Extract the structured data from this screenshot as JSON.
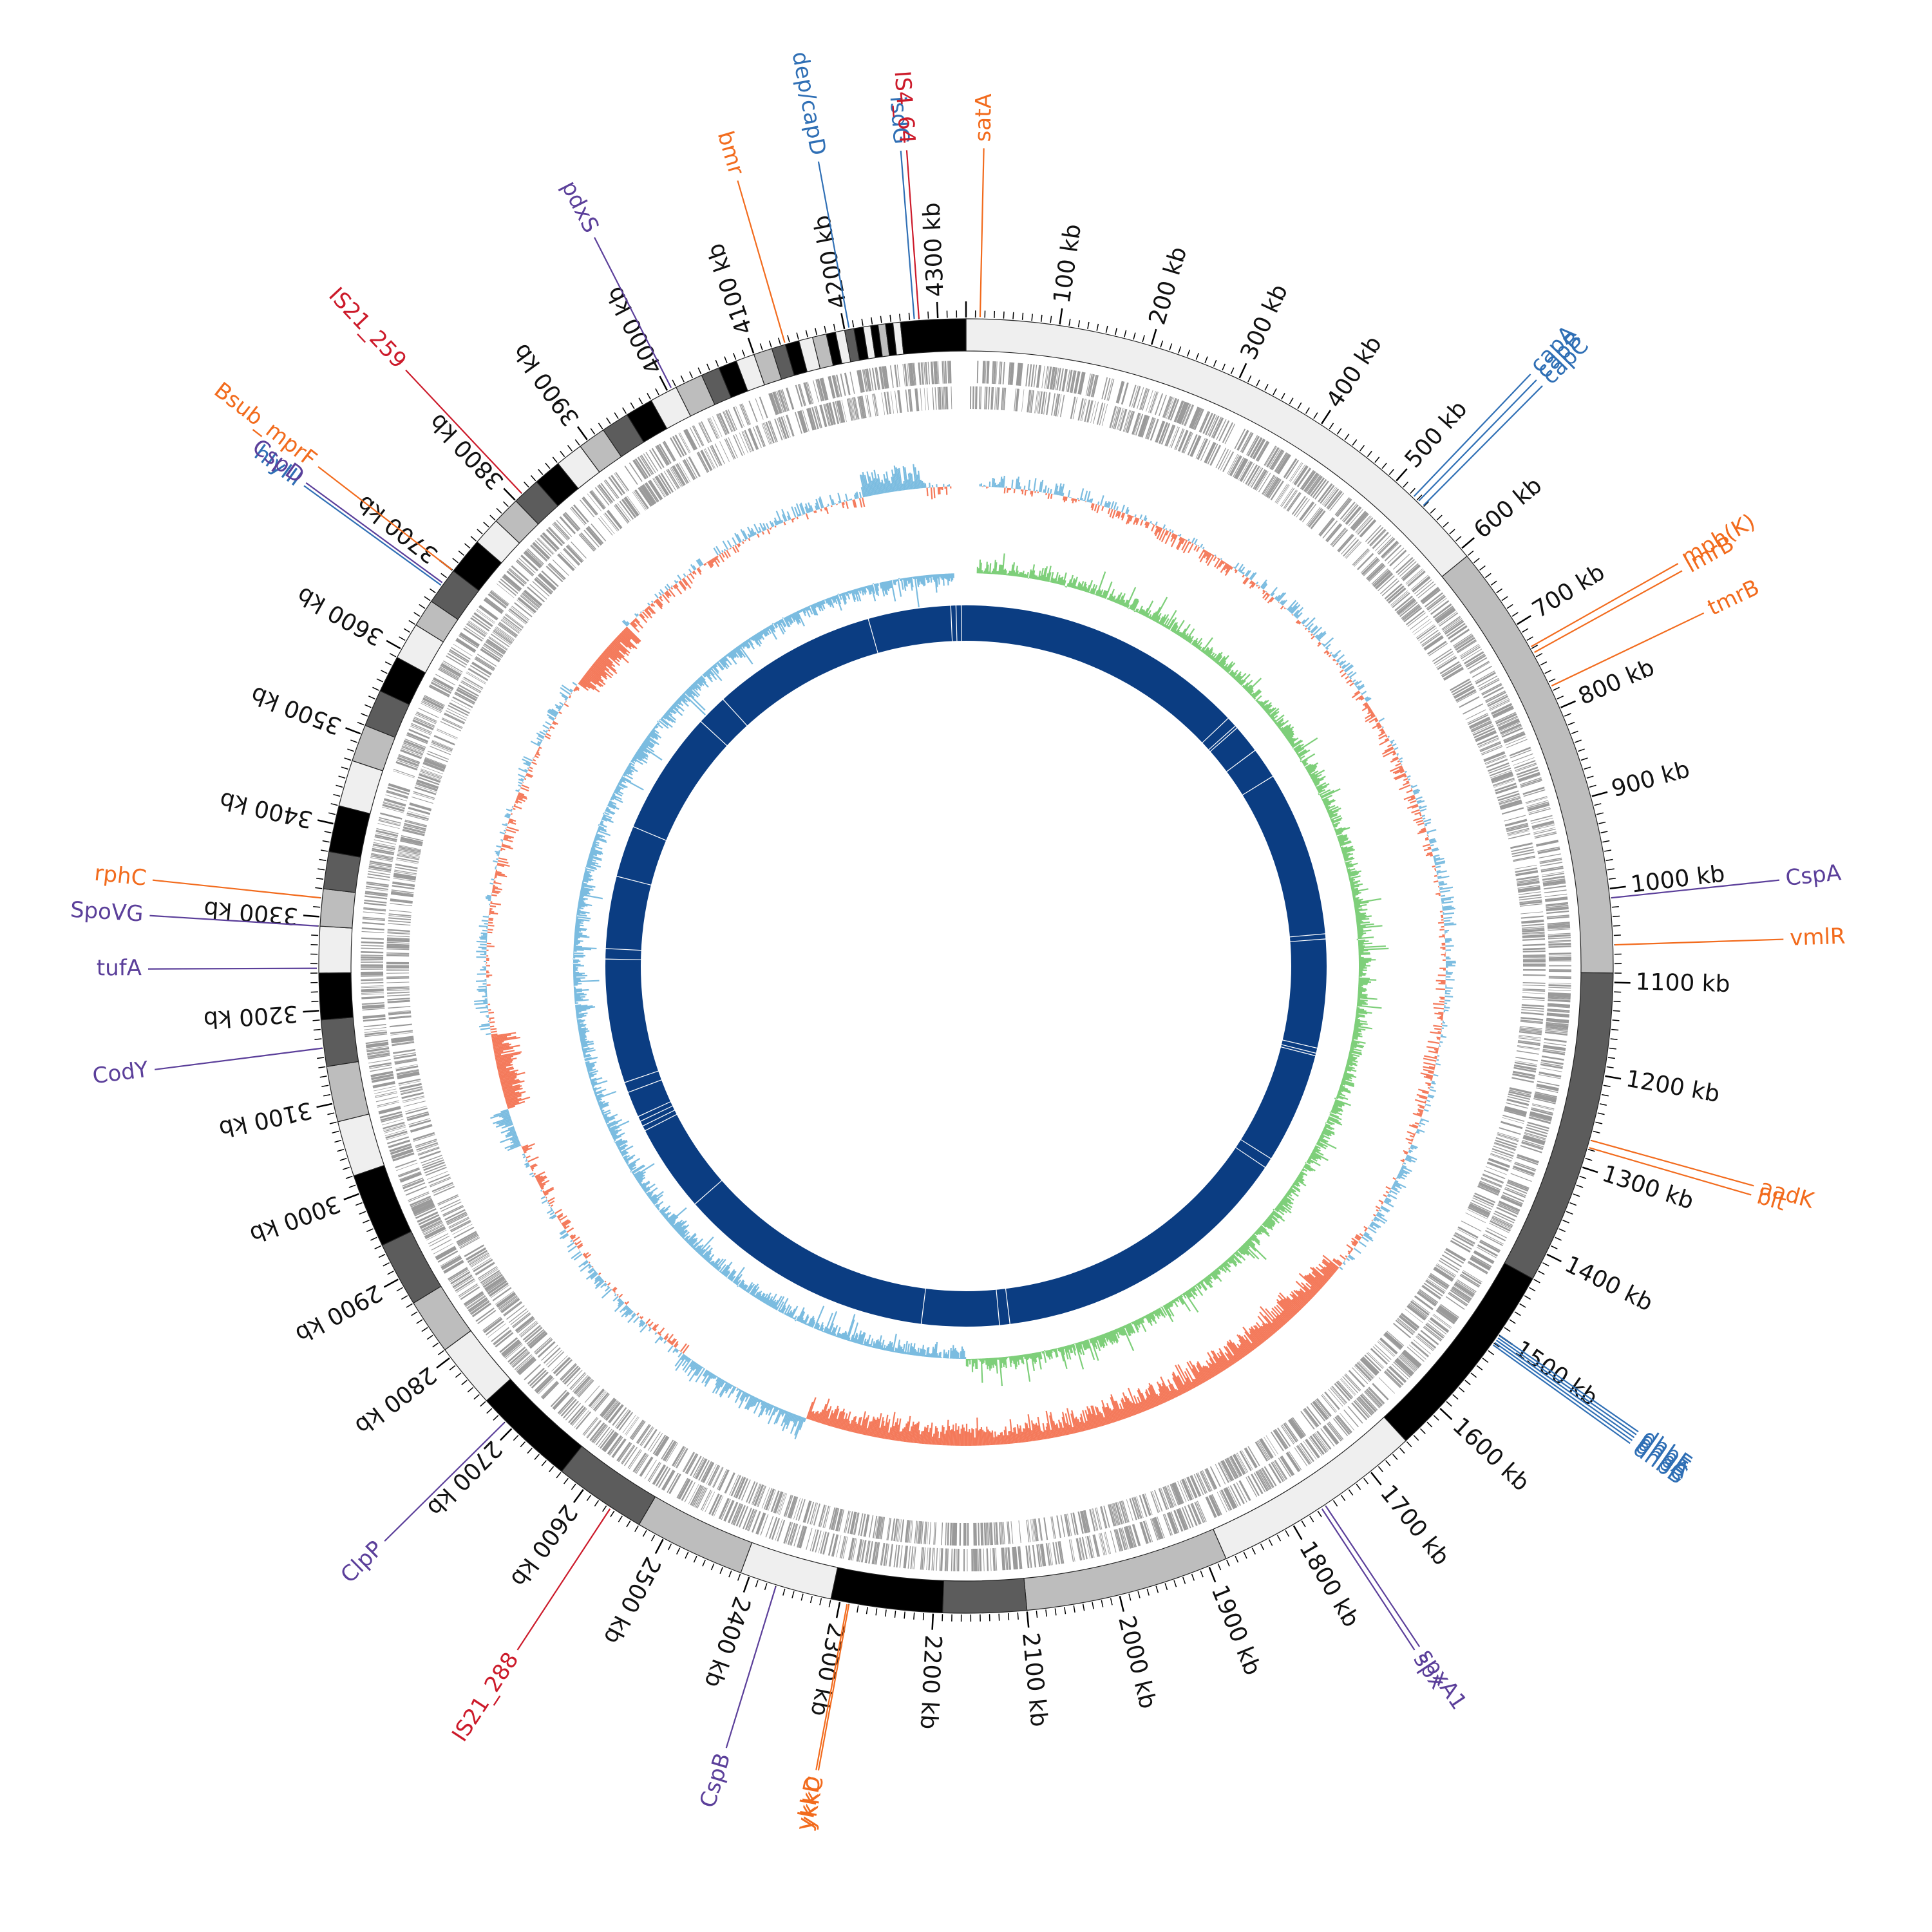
{
  "genome": {
    "length_kb": 4330,
    "start_angle_deg": 0
  },
  "colors": {
    "orange": "#f26b1d",
    "blue": "#2f6fb5",
    "purple": "#5b3f9a",
    "red": "#cc1a2a",
    "gc_pos": "#7bbce0",
    "gc_neg": "#f4795a",
    "skew": "#7ecf7a",
    "core": "#0b3d82",
    "cds": "#9a9a9a"
  },
  "ticks": {
    "labels": [
      "100 kb",
      "200 kb",
      "300 kb",
      "400 kb",
      "500 kb",
      "600 kb",
      "700 kb",
      "800 kb",
      "900 kb",
      "1000 kb",
      "1100 kb",
      "1200 kb",
      "1300 kb",
      "1400 kb",
      "1500 kb",
      "1600 kb",
      "1700 kb",
      "1800 kb",
      "1900 kb",
      "2000 kb",
      "2100 kb",
      "2200 kb",
      "2300 kb",
      "2400 kb",
      "2500 kb",
      "2600 kb",
      "2700 kb",
      "2800 kb",
      "2900 kb",
      "3000 kb",
      "3100 kb",
      "3200 kb",
      "3300 kb",
      "3400 kb",
      "3500 kb",
      "3600 kb",
      "3700 kb",
      "3800 kb",
      "3900 kb",
      "4000 kb",
      "4100 kb",
      "4200 kb",
      "4300 kb"
    ],
    "positions_kb": [
      100,
      200,
      300,
      400,
      500,
      600,
      700,
      800,
      900,
      1000,
      1100,
      1200,
      1300,
      1400,
      1500,
      1600,
      1700,
      1800,
      1900,
      2000,
      2100,
      2200,
      2300,
      2400,
      2500,
      2600,
      2700,
      2800,
      2900,
      3000,
      3100,
      3200,
      3300,
      3400,
      3500,
      3600,
      3700,
      3800,
      3900,
      4000,
      4100,
      4200,
      4300
    ]
  },
  "contig_blocks_kb": [
    {
      "start": 0,
      "end": 610,
      "shade": "#efefef"
    },
    {
      "start": 610,
      "end": 1090,
      "shade": "#bdbdbd"
    },
    {
      "start": 1090,
      "end": 1430,
      "shade": "#5c5c5c"
    },
    {
      "start": 1430,
      "end": 1650,
      "shade": "#000000"
    },
    {
      "start": 1650,
      "end": 1880,
      "shade": "#efefef"
    },
    {
      "start": 1880,
      "end": 2100,
      "shade": "#bdbdbd"
    },
    {
      "start": 2100,
      "end": 2190,
      "shade": "#5c5c5c"
    },
    {
      "start": 2190,
      "end": 2310,
      "shade": "#000000"
    },
    {
      "start": 2310,
      "end": 2410,
      "shade": "#efefef"
    },
    {
      "start": 2410,
      "end": 2530,
      "shade": "#bdbdbd"
    },
    {
      "start": 2530,
      "end": 2630,
      "shade": "#5c5c5c"
    },
    {
      "start": 2630,
      "end": 2740,
      "shade": "#000000"
    },
    {
      "start": 2740,
      "end": 2810,
      "shade": "#efefef"
    },
    {
      "start": 2810,
      "end": 2870,
      "shade": "#bdbdbd"
    },
    {
      "start": 2870,
      "end": 2940,
      "shade": "#5c5c5c"
    },
    {
      "start": 2940,
      "end": 3020,
      "shade": "#000000"
    },
    {
      "start": 3020,
      "end": 3080,
      "shade": "#efefef"
    },
    {
      "start": 3080,
      "end": 3140,
      "shade": "#bdbdbd"
    },
    {
      "start": 3140,
      "end": 3190,
      "shade": "#5c5c5c"
    },
    {
      "start": 3190,
      "end": 3240,
      "shade": "#000000"
    },
    {
      "start": 3240,
      "end": 3290,
      "shade": "#efefef"
    },
    {
      "start": 3290,
      "end": 3330,
      "shade": "#bdbdbd"
    },
    {
      "start": 3330,
      "end": 3370,
      "shade": "#5c5c5c"
    },
    {
      "start": 3370,
      "end": 3420,
      "shade": "#000000"
    },
    {
      "start": 3420,
      "end": 3470,
      "shade": "#efefef"
    },
    {
      "start": 3470,
      "end": 3510,
      "shade": "#bdbdbd"
    },
    {
      "start": 3510,
      "end": 3550,
      "shade": "#5c5c5c"
    },
    {
      "start": 3550,
      "end": 3590,
      "shade": "#000000"
    },
    {
      "start": 3590,
      "end": 3630,
      "shade": "#efefef"
    },
    {
      "start": 3630,
      "end": 3660,
      "shade": "#bdbdbd"
    },
    {
      "start": 3660,
      "end": 3700,
      "shade": "#5c5c5c"
    },
    {
      "start": 3700,
      "end": 3740,
      "shade": "#000000"
    },
    {
      "start": 3740,
      "end": 3770,
      "shade": "#efefef"
    },
    {
      "start": 3770,
      "end": 3800,
      "shade": "#bdbdbd"
    },
    {
      "start": 3800,
      "end": 3830,
      "shade": "#5c5c5c"
    },
    {
      "start": 3830,
      "end": 3860,
      "shade": "#000000"
    },
    {
      "start": 3860,
      "end": 3890,
      "shade": "#efefef"
    },
    {
      "start": 3890,
      "end": 3920,
      "shade": "#bdbdbd"
    },
    {
      "start": 3920,
      "end": 3950,
      "shade": "#5c5c5c"
    },
    {
      "start": 3950,
      "end": 3980,
      "shade": "#000000"
    },
    {
      "start": 3980,
      "end": 4010,
      "shade": "#efefef"
    },
    {
      "start": 4010,
      "end": 4040,
      "shade": "#bdbdbd"
    },
    {
      "start": 4040,
      "end": 4060,
      "shade": "#5c5c5c"
    },
    {
      "start": 4060,
      "end": 4080,
      "shade": "#000000"
    },
    {
      "start": 4080,
      "end": 4100,
      "shade": "#efefef"
    },
    {
      "start": 4100,
      "end": 4120,
      "shade": "#bdbdbd"
    },
    {
      "start": 4120,
      "end": 4135,
      "shade": "#5c5c5c"
    },
    {
      "start": 4135,
      "end": 4150,
      "shade": "#000000"
    },
    {
      "start": 4150,
      "end": 4165,
      "shade": "#efefef"
    },
    {
      "start": 4165,
      "end": 4180,
      "shade": "#bdbdbd"
    },
    {
      "start": 4180,
      "end": 4190,
      "shade": "#000000"
    },
    {
      "start": 4190,
      "end": 4200,
      "shade": "#efefef"
    },
    {
      "start": 4200,
      "end": 4210,
      "shade": "#5c5c5c"
    },
    {
      "start": 4210,
      "end": 4220,
      "shade": "#000000"
    },
    {
      "start": 4220,
      "end": 4228,
      "shade": "#efefef"
    },
    {
      "start": 4228,
      "end": 4236,
      "shade": "#000000"
    },
    {
      "start": 4236,
      "end": 4244,
      "shade": "#bdbdbd"
    },
    {
      "start": 4244,
      "end": 4252,
      "shade": "#000000"
    },
    {
      "start": 4252,
      "end": 4260,
      "shade": "#efefef"
    },
    {
      "start": 4260,
      "end": 4330,
      "shade": "#000000"
    }
  ],
  "core_gaps_kb": [
    560,
    580,
    585,
    640,
    700,
    1020,
    1030,
    1240,
    1250,
    1255,
    1470,
    1490,
    2080,
    2100,
    2250,
    2750,
    2920,
    2930,
    2940,
    2950,
    3000,
    3020,
    3260,
    3280,
    3420,
    3520,
    3760,
    3820,
    4140,
    4300,
    4310,
    4320
  ],
  "labels": [
    {
      "text": "satA",
      "kb": 15,
      "color": "orange"
    },
    {
      "text": "capA",
      "kb": 525,
      "color": "blue"
    },
    {
      "text": "capB",
      "kb": 532,
      "color": "blue"
    },
    {
      "text": "capC",
      "kb": 539,
      "color": "blue"
    },
    {
      "text": "mph(K)",
      "kb": 728,
      "color": "orange"
    },
    {
      "text": "lmrB",
      "kb": 735,
      "color": "orange"
    },
    {
      "text": "tmrB",
      "kb": 775,
      "color": "orange"
    },
    {
      "text": "CspA",
      "kb": 1010,
      "color": "purple"
    },
    {
      "text": "vmlR",
      "kb": 1060,
      "color": "orange"
    },
    {
      "text": "aadK",
      "kb": 1270,
      "color": "orange"
    },
    {
      "text": "blt",
      "kb": 1278,
      "color": "orange"
    },
    {
      "text": "dhbF",
      "kb": 1500,
      "color": "blue"
    },
    {
      "text": "dhbE",
      "kb": 1503,
      "color": "blue"
    },
    {
      "text": "dhbA",
      "kb": 1506,
      "color": "blue"
    },
    {
      "text": "dhbC",
      "kb": 1509,
      "color": "blue"
    },
    {
      "text": "dhbB",
      "kb": 1512,
      "color": "blue"
    },
    {
      "text": "spxA1",
      "kb": 1760,
      "color": "purple"
    },
    {
      "text": "spx",
      "kb": 1765,
      "color": "purple"
    },
    {
      "text": "ykkC",
      "kb": 2290,
      "color": "orange"
    },
    {
      "text": "ykkD",
      "kb": 2292,
      "color": "orange"
    },
    {
      "text": "CspB",
      "kb": 2370,
      "color": "purple"
    },
    {
      "text": "IS21_288",
      "kb": 2565,
      "color": "red"
    },
    {
      "text": "ClpP",
      "kb": 2710,
      "color": "purple"
    },
    {
      "text": "CodY",
      "kb": 3160,
      "color": "purple"
    },
    {
      "text": "tufA",
      "kb": 3245,
      "color": "purple"
    },
    {
      "text": "SpoVG",
      "kb": 3290,
      "color": "purple"
    },
    {
      "text": "rphC",
      "kb": 3320,
      "color": "orange"
    },
    {
      "text": "hlyIII",
      "kb": 3680,
      "color": "blue"
    },
    {
      "text": "CspD",
      "kb": 3683,
      "color": "purple"
    },
    {
      "text": "Bsub_mprF",
      "kb": 3700,
      "color": "orange"
    },
    {
      "text": "IS21_259",
      "kb": 3810,
      "color": "red"
    },
    {
      "text": "pdxS",
      "kb": 4005,
      "color": "purple"
    },
    {
      "text": "bmr",
      "kb": 4135,
      "color": "orange"
    },
    {
      "text": "dep/capD",
      "kb": 4205,
      "color": "blue"
    },
    {
      "text": "isdG",
      "kb": 4275,
      "color": "blue"
    },
    {
      "text": "IS4_64",
      "kb": 4280,
      "color": "red"
    }
  ]
}
